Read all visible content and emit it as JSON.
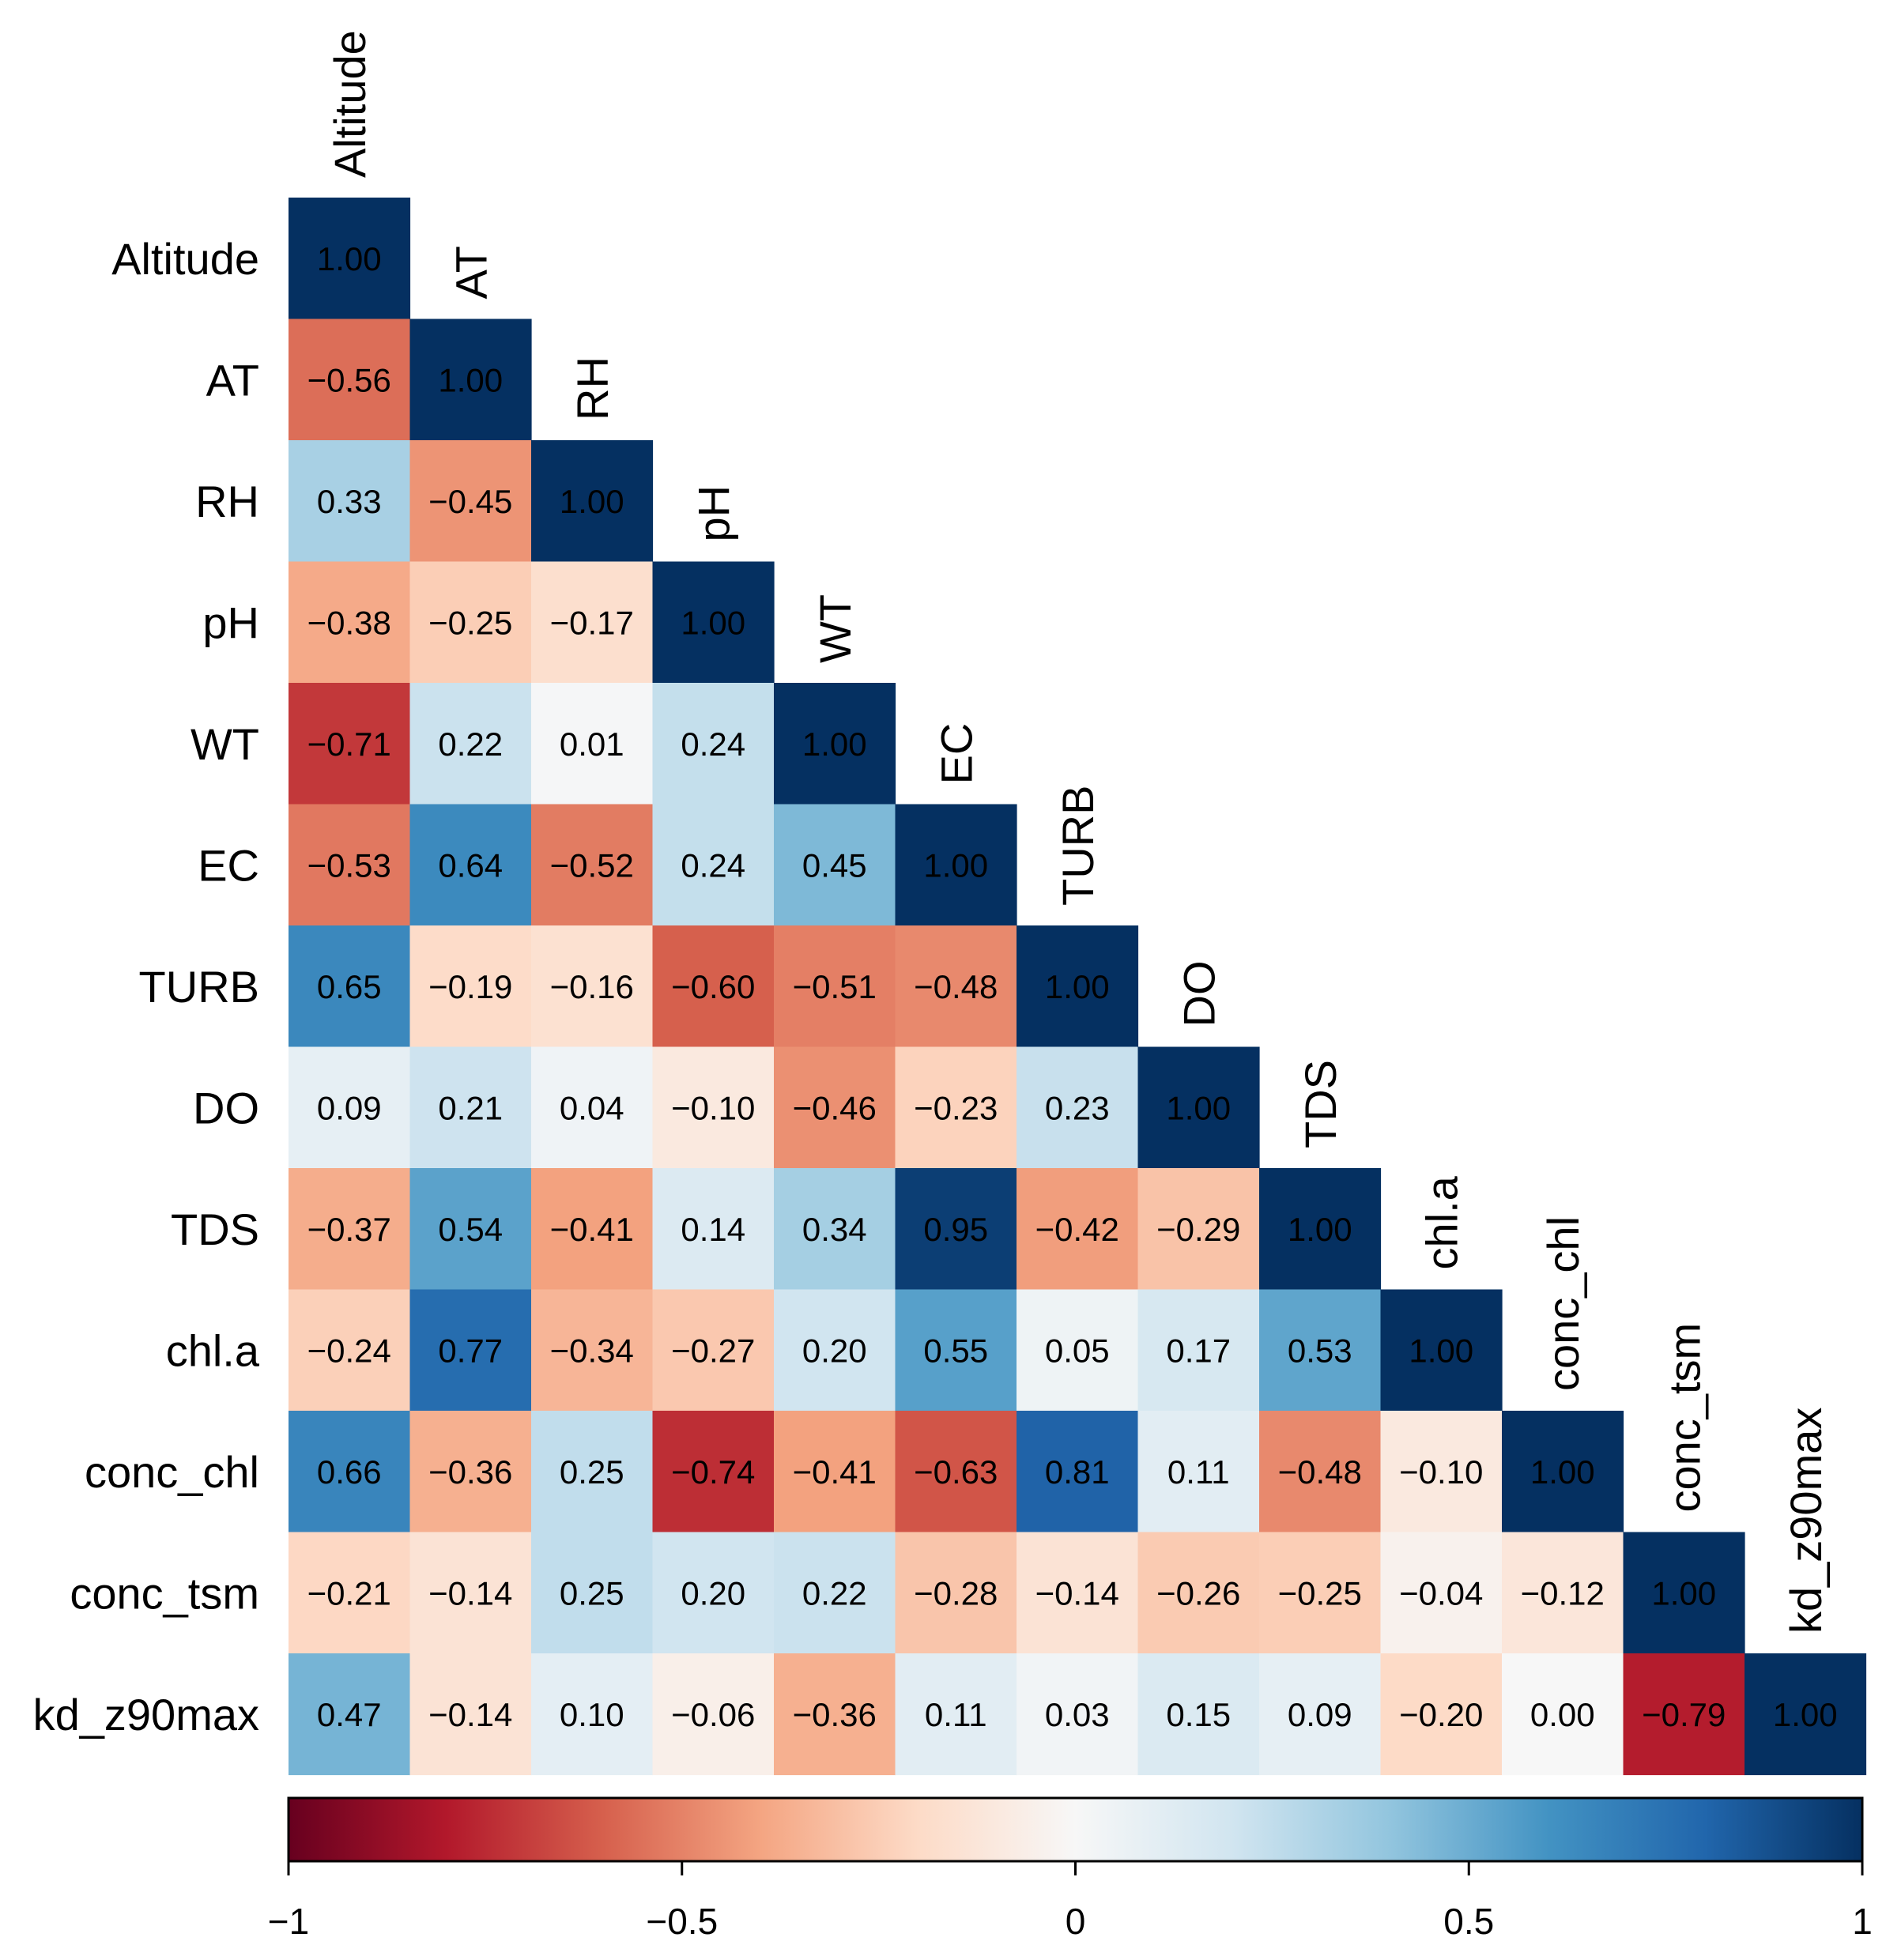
{
  "chart_data": {
    "type": "heatmap",
    "subtype": "lower-triangular correlation matrix",
    "variables": [
      "Altitude",
      "AT",
      "RH",
      "pH",
      "WT",
      "EC",
      "TURB",
      "DO",
      "TDS",
      "chl.a",
      "conc_chl",
      "conc_tsm",
      "kd_z90max"
    ],
    "matrix": [
      [
        1.0
      ],
      [
        -0.56,
        1.0
      ],
      [
        0.33,
        -0.45,
        1.0
      ],
      [
        -0.38,
        -0.25,
        -0.17,
        1.0
      ],
      [
        -0.71,
        0.22,
        0.01,
        0.24,
        1.0
      ],
      [
        -0.53,
        0.64,
        -0.52,
        0.24,
        0.45,
        1.0
      ],
      [
        0.65,
        -0.19,
        -0.16,
        -0.6,
        -0.51,
        -0.48,
        1.0
      ],
      [
        0.09,
        0.21,
        0.04,
        -0.1,
        -0.46,
        -0.23,
        0.23,
        1.0
      ],
      [
        -0.37,
        0.54,
        -0.41,
        0.14,
        0.34,
        0.95,
        -0.42,
        -0.29,
        1.0
      ],
      [
        -0.24,
        0.77,
        -0.34,
        -0.27,
        0.2,
        0.55,
        0.05,
        0.17,
        0.53,
        1.0
      ],
      [
        0.66,
        -0.36,
        0.25,
        -0.74,
        -0.41,
        -0.63,
        0.81,
        0.11,
        -0.48,
        -0.1,
        1.0
      ],
      [
        -0.21,
        -0.14,
        0.25,
        0.2,
        0.22,
        -0.28,
        -0.14,
        -0.26,
        -0.25,
        -0.04,
        -0.12,
        1.0
      ],
      [
        0.47,
        -0.14,
        0.1,
        -0.06,
        -0.36,
        0.11,
        0.03,
        0.15,
        0.09,
        -0.2,
        0.0,
        -0.79,
        1.0
      ]
    ],
    "colorbar": {
      "range": [
        -1,
        1
      ],
      "tick_values": [
        -1,
        -0.5,
        0,
        0.5,
        1
      ],
      "tick_labels": [
        "−1",
        "−0.5",
        "0",
        "0.5",
        "1"
      ],
      "colormap": [
        "#67001F",
        "#B2182B",
        "#D6604D",
        "#F4A582",
        "#FDDBC7",
        "#F7F7F7",
        "#D1E5F0",
        "#92C5DE",
        "#4393C3",
        "#2166AC",
        "#053061"
      ]
    },
    "title": "",
    "xlabel": "",
    "ylabel": ""
  }
}
